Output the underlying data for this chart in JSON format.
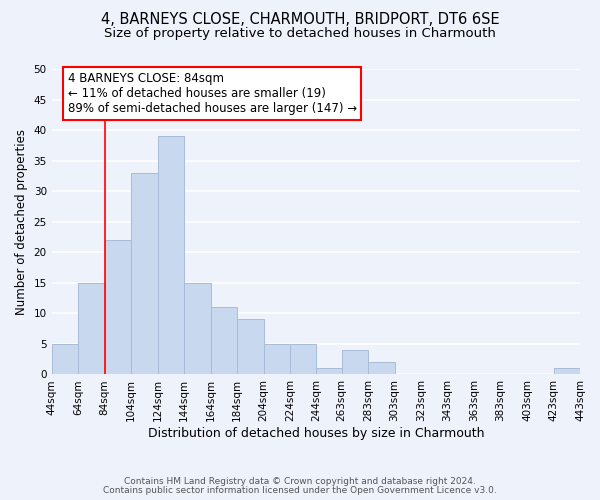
{
  "title": "4, BARNEYS CLOSE, CHARMOUTH, BRIDPORT, DT6 6SE",
  "subtitle": "Size of property relative to detached houses in Charmouth",
  "xlabel": "Distribution of detached houses by size in Charmouth",
  "ylabel": "Number of detached properties",
  "bar_left_edges": [
    44,
    64,
    84,
    104,
    124,
    144,
    164,
    184,
    204,
    224,
    244,
    263,
    283,
    303,
    323,
    343,
    363,
    383,
    403,
    423
  ],
  "bar_widths": [
    20,
    20,
    20,
    20,
    20,
    20,
    20,
    20,
    20,
    20,
    19,
    20,
    20,
    20,
    20,
    20,
    20,
    20,
    20,
    20
  ],
  "bar_heights": [
    5,
    15,
    22,
    33,
    39,
    15,
    11,
    9,
    5,
    5,
    1,
    4,
    2,
    0,
    0,
    0,
    0,
    0,
    0,
    1
  ],
  "bar_color": "#c8d8ee",
  "bar_edgecolor": "#a8bcd8",
  "x_tick_labels": [
    "44sqm",
    "64sqm",
    "84sqm",
    "104sqm",
    "124sqm",
    "144sqm",
    "164sqm",
    "184sqm",
    "204sqm",
    "224sqm",
    "244sqm",
    "263sqm",
    "283sqm",
    "303sqm",
    "323sqm",
    "343sqm",
    "363sqm",
    "383sqm",
    "403sqm",
    "423sqm",
    "443sqm"
  ],
  "x_tick_positions": [
    44,
    64,
    84,
    104,
    124,
    144,
    164,
    184,
    204,
    224,
    244,
    263,
    283,
    303,
    323,
    343,
    363,
    383,
    403,
    423,
    443
  ],
  "ylim": [
    0,
    50
  ],
  "xlim": [
    44,
    443
  ],
  "redline_x": 84,
  "annotation_title": "4 BARNEYS CLOSE: 84sqm",
  "annotation_line1": "← 11% of detached houses are smaller (19)",
  "annotation_line2": "89% of semi-detached houses are larger (147) →",
  "footer1": "Contains HM Land Registry data © Crown copyright and database right 2024.",
  "footer2": "Contains public sector information licensed under the Open Government Licence v3.0.",
  "background_color": "#eef2fb",
  "grid_color": "#ffffff",
  "title_fontsize": 10.5,
  "subtitle_fontsize": 9.5,
  "tick_fontsize": 7.5,
  "ylabel_fontsize": 8.5,
  "xlabel_fontsize": 9,
  "footer_fontsize": 6.5,
  "annotation_fontsize": 8.5
}
